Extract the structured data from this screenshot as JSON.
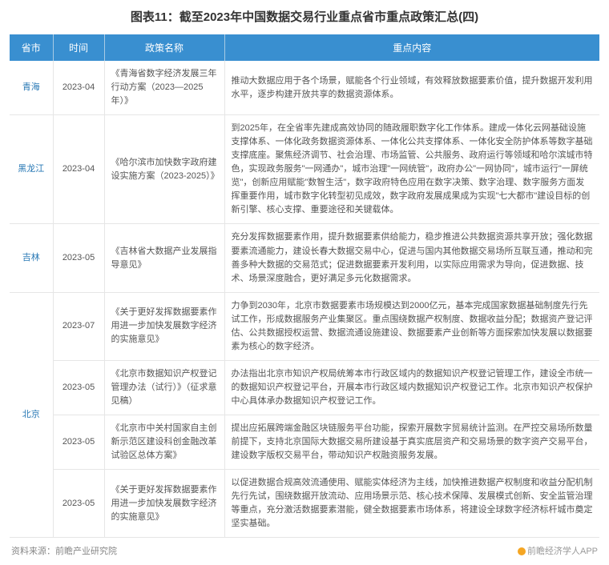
{
  "title": "图表11：截至2023年中国数据交易行业重点省市重点政策汇总(四)",
  "columns": [
    "省市",
    "时间",
    "政策名称",
    "重点内容"
  ],
  "colWidths": [
    "54px",
    "64px",
    "150px",
    "auto"
  ],
  "headerBg": "#398fd0",
  "headerColor": "#ffffff",
  "provinceColor": "#2878b5",
  "rows": [
    {
      "province": "青海",
      "provinceRowspan": 1,
      "time": "2023-04",
      "policy": "《青海省数字经济发展三年行动方案（2023—2025年）》",
      "content": "推动大数据应用于各个场景，赋能各个行业领域，有效释放数据要素价值，提升数据开发利用水平，逐步构建开放共享的数据资源体系。"
    },
    {
      "province": "黑龙江",
      "provinceRowspan": 1,
      "time": "2023-04",
      "policy": "《哈尔滨市加快数字政府建设实施方案（2023-2025）》",
      "content": "到2025年，在全省率先建成高效协同的随政履职数字化工作体系。建成一体化云网基础设施支撑体系、一体化政务数据资源体系、一体化公共支撑体系、一体化安全防护体系等数字基础支撑底座。聚焦经济调节、社会治理、市场监管、公共服务、政府运行等领域和哈尔滨城市特色，实现政务服务\"一网通办\"，城市治理\"一网统管\"，政府办公\"一网协同\"，城市运行\"一屏统览\"，创新应用赋能\"数智生活\"，数字政府特色应用在数字决策、数字治理、数字服务方面发挥重要作用，城市数字化转型初见成效，数字政府发展成果成为实现\"七大都市\"建设目标的创新引擎、核心支撑、重要途径和关键载体。"
    },
    {
      "province": "吉林",
      "provinceRowspan": 1,
      "time": "2023-05",
      "policy": "《吉林省大数据产业发展指导意见》",
      "content": "充分发挥数据要素作用，提升数据要素供给能力，稳步推进公共数据资源共享开放；强化数据要素流通能力，建设长春大数据交易中心，促进与国内其他数据交易场所互联互通，推动和完善多种大数据的交易范式；促进数据要素开发利用，以实际应用需求为导向，促进数据、技术、场景深度融合，更好满足多元化数据需求。"
    },
    {
      "province": "北京",
      "provinceRowspan": 4,
      "time": "2023-07",
      "policy": "《关于更好发挥数据要素作用进一步加快发展数字经济的实施意见》",
      "content": "力争到2030年，北京市数据要素市场规模达到2000亿元，基本完成国家数据基础制度先行先试工作，形成数据服务产业集聚区。重点围绕数据产权制度、数据收益分配；数据资产登记评估、公共数据授权运营、数据流通设施建设、数据要素产业创新等方面探索加快发展以数据要素为核心的数字经济。"
    },
    {
      "province": "",
      "provinceRowspan": 0,
      "time": "2023-05",
      "policy": "《北京市数据知识产权登记管理办法（试行）》（征求意见稿）",
      "content": "办法指出北京市知识产权局统筹本市行政区域内的数据知识产权登记管理工作，建设全市统一的数据知识产权登记平台，开展本市行政区域内数据知识产权登记工作。北京市知识产权保护中心具体承办数据知识产权登记工作。"
    },
    {
      "province": "",
      "provinceRowspan": 0,
      "time": "2023-05",
      "policy": "《北京市中关村国家自主创新示范区建设科创金融改革试验区总体方案》",
      "content": "提出应拓展跨端金融区块链服务平台功能，探索开展数字贸易统计监测。在严控交易场所数量前提下，支持北京国际大数据交易所建设基于真实底层资产和交易场景的数字资产交易平台，建设数字版权交易平台，带动知识产权融资服务发展。"
    },
    {
      "province": "",
      "provinceRowspan": 0,
      "time": "2023-05",
      "policy": "《关于更好发挥数据要素作用进一步加快发展数字经济的实施意见》",
      "content": "以促进数据合规高效流通使用、赋能实体经济为主线，加快推进数据产权制度和收益分配机制先行先试，围绕数据开放流动、应用场景示范、核心技术保障、发展模式创新、安全监管治理等重点，充分激活数据要素潜能，健全数据要素市场体系，将建设全球数字经济标杆城市奠定坚实基础。"
    }
  ],
  "footer": {
    "source": "资料来源：前瞻产业研究院",
    "brand": "前瞻经济学人APP"
  }
}
